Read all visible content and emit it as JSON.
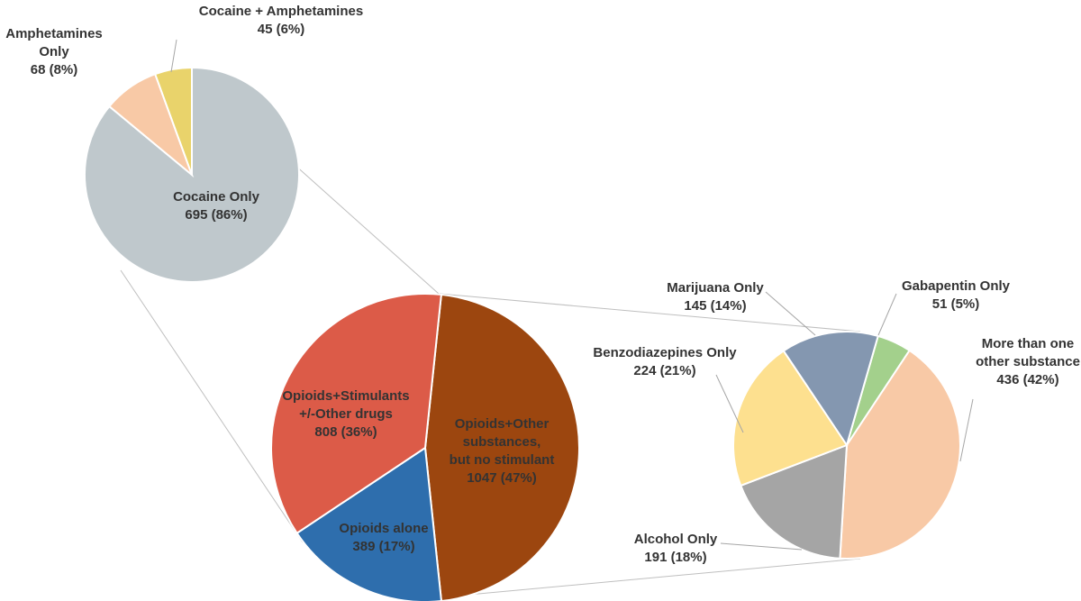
{
  "chart_data": [
    {
      "type": "pie",
      "slices": [
        {
          "label": [
            "Cocaine Only",
            "695 (86%)"
          ],
          "value": 695,
          "percent": 86,
          "color": "#bfc8cc"
        },
        {
          "label": [
            "Amphetamines",
            "Only",
            "68 (8%)"
          ],
          "value": 68,
          "percent": 8,
          "color": "#f8c9a6"
        },
        {
          "label": [
            "Cocaine + Amphetamines",
            "45 (6%)"
          ],
          "value": 45,
          "percent": 6,
          "color": "#e9d36b"
        }
      ]
    },
    {
      "type": "pie",
      "slices": [
        {
          "label": [
            "Opioids+Other",
            "substances,",
            "but no stimulant",
            "1047 (47%)"
          ],
          "value": 1047,
          "percent": 47,
          "color": "#9c460f"
        },
        {
          "label": [
            "Opioids alone",
            "389 (17%)"
          ],
          "value": 389,
          "percent": 17,
          "color": "#2e6ead"
        },
        {
          "label": [
            "Opioids+Stimulants",
            "+/-Other drugs",
            "808 (36%)"
          ],
          "value": 808,
          "percent": 36,
          "color": "#dc5b48"
        }
      ]
    },
    {
      "type": "pie",
      "slices": [
        {
          "label": [
            "Gabapentin Only",
            "51 (5%)"
          ],
          "value": 51,
          "percent": 5,
          "color": "#a3d08c"
        },
        {
          "label": [
            "More than one",
            "other substance",
            "436 (42%)"
          ],
          "value": 436,
          "percent": 42,
          "color": "#f8c9a6"
        },
        {
          "label": [
            "Alcohol Only",
            "191 (18%)"
          ],
          "value": 191,
          "percent": 18,
          "color": "#a5a5a5"
        },
        {
          "label": [
            "Benzodiazepines Only",
            "224 (21%)"
          ],
          "value": 224,
          "percent": 21,
          "color": "#fde08f"
        },
        {
          "label": [
            "Marijuana Only",
            "145 (14%)"
          ],
          "value": 145,
          "percent": 14,
          "color": "#8497b0"
        }
      ]
    }
  ]
}
